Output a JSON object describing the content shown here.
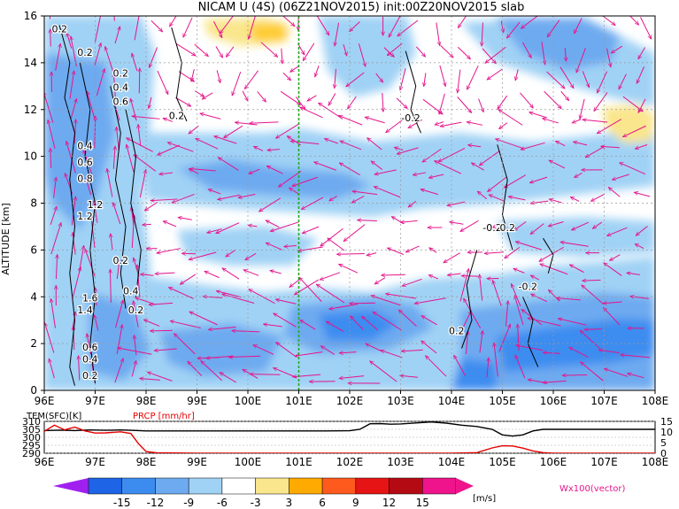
{
  "chart_data": [
    {
      "type": "heatmap",
      "title": "NICAM U (4S) (06Z21NOV2015) init:00Z20NOV2015 slab",
      "ylabel": "ALTITUDE [km]",
      "x_ticks": [
        "96E",
        "97E",
        "98E",
        "99E",
        "100E",
        "101E",
        "102E",
        "103E",
        "104E",
        "105E",
        "106E",
        "107E",
        "108E"
      ],
      "xlim": [
        96,
        108
      ],
      "y_ticks": [
        "0",
        "2",
        "4",
        "6",
        "8",
        "10",
        "12",
        "14",
        "16"
      ],
      "ylim": [
        0,
        16
      ],
      "marker_longitude": 101,
      "contour_labels": [
        {
          "text": "0.2",
          "x": 96.3,
          "y": 15.3
        },
        {
          "text": "0.2",
          "x": 96.8,
          "y": 14.3
        },
        {
          "text": "0.2",
          "x": 97.5,
          "y": 13.4
        },
        {
          "text": "0.4",
          "x": 97.5,
          "y": 12.8
        },
        {
          "text": "0.6",
          "x": 97.5,
          "y": 12.2
        },
        {
          "text": "0.2",
          "x": 98.6,
          "y": 11.6
        },
        {
          "text": "0.4",
          "x": 96.8,
          "y": 10.3
        },
        {
          "text": "0.6",
          "x": 96.8,
          "y": 9.6
        },
        {
          "text": "0.8",
          "x": 96.8,
          "y": 8.9
        },
        {
          "text": "1.2",
          "x": 97.0,
          "y": 7.8
        },
        {
          "text": "1.2",
          "x": 96.8,
          "y": 7.3
        },
        {
          "text": "0.2",
          "x": 97.5,
          "y": 5.4
        },
        {
          "text": "0.4",
          "x": 97.7,
          "y": 4.1
        },
        {
          "text": "0.2",
          "x": 97.8,
          "y": 3.3
        },
        {
          "text": "1.6",
          "x": 96.9,
          "y": 3.8
        },
        {
          "text": "1.4",
          "x": 96.8,
          "y": 3.3
        },
        {
          "text": "0.6",
          "x": 96.9,
          "y": 1.7
        },
        {
          "text": "0.4",
          "x": 96.9,
          "y": 1.2
        },
        {
          "text": "0.2",
          "x": 96.9,
          "y": 0.5
        },
        {
          "text": "-0.2",
          "x": 103.2,
          "y": 11.5
        },
        {
          "text": "-0.2",
          "x": 104.8,
          "y": 6.8
        },
        {
          "text": "0.2",
          "x": 105.1,
          "y": 6.8
        },
        {
          "text": "-0.2",
          "x": 105.5,
          "y": 4.3
        },
        {
          "text": "0.2",
          "x": 104.1,
          "y": 2.4
        }
      ],
      "color_scale": {
        "levels": [
          "-15",
          "-12",
          "-9",
          "-6",
          "-3",
          "3",
          "6",
          "9",
          "12",
          "15"
        ],
        "unit": "[m/s]",
        "colors": [
          "#a020f0",
          "#1e64e6",
          "#3c8cf0",
          "#6eaaf0",
          "#a0d2f5",
          "#ffffff",
          "#fae68c",
          "#ffaa00",
          "#ff5a1e",
          "#e61414",
          "#b40a14",
          "#f0148c"
        ]
      },
      "vector_label": "Wx100(vector)",
      "vector_color": "#e6148c",
      "contour_color": "#000000"
    },
    {
      "type": "line",
      "x_ticks": [
        "96E",
        "97E",
        "98E",
        "99E",
        "100E",
        "101E",
        "102E",
        "103E",
        "104E",
        "105E",
        "106E",
        "107E",
        "108E"
      ],
      "xlim": [
        96,
        108
      ],
      "left_axis": {
        "label": "TEM(SFC)[K]",
        "ticks": [
          "310",
          "305",
          "300",
          "295",
          "290"
        ],
        "ylim": [
          290,
          310
        ]
      },
      "right_axis": {
        "label": "PRCP [mm/hr]",
        "ticks": [
          "15",
          "10",
          "5",
          "0"
        ],
        "ylim": [
          0,
          15
        ]
      },
      "series": [
        {
          "name": "TEM(SFC)[K]",
          "color": "#000000",
          "x": [
            96.0,
            96.3,
            96.6,
            96.9,
            97.2,
            97.5,
            97.8,
            98.0,
            98.5,
            99.0,
            99.5,
            100.0,
            100.5,
            101.0,
            101.5,
            102.0,
            102.2,
            102.4,
            102.6,
            102.8,
            103.0,
            103.3,
            103.6,
            103.9,
            104.2,
            104.5,
            104.8,
            105.0,
            105.2,
            105.4,
            105.6,
            105.8,
            106.0,
            106.5,
            107.0,
            107.5,
            108.0
          ],
          "values": [
            304.2,
            304.5,
            304.2,
            304.6,
            304.4,
            304.6,
            304.3,
            304.0,
            304.0,
            304.0,
            304.0,
            304.0,
            304.0,
            304.0,
            304.0,
            304.1,
            305.0,
            308.5,
            308.6,
            308.2,
            308.4,
            309.0,
            309.6,
            308.9,
            307.6,
            306.8,
            305.0,
            301.5,
            300.8,
            301.5,
            304.0,
            305.0,
            305.0,
            305.0,
            305.0,
            305.0,
            305.0
          ]
        },
        {
          "name": "PRCP [mm/hr]",
          "color": "#e60000",
          "x": [
            96.0,
            96.2,
            96.4,
            96.6,
            96.8,
            97.0,
            97.2,
            97.5,
            97.7,
            97.85,
            98.0,
            98.2,
            99.0,
            100.0,
            101.0,
            102.0,
            103.0,
            104.0,
            104.5,
            104.8,
            105.0,
            105.2,
            105.4,
            105.6,
            105.8,
            106.0,
            107.0,
            108.0
          ],
          "values": [
            10.3,
            13.2,
            11.0,
            12.3,
            10.5,
            9.5,
            9.6,
            10.1,
            9.3,
            4.5,
            0.8,
            0.2,
            0.0,
            0.0,
            0.0,
            0.0,
            0.0,
            0.0,
            0.3,
            2.5,
            3.5,
            3.4,
            2.4,
            1.1,
            0.3,
            0.0,
            0.0,
            0.0
          ]
        }
      ]
    }
  ]
}
